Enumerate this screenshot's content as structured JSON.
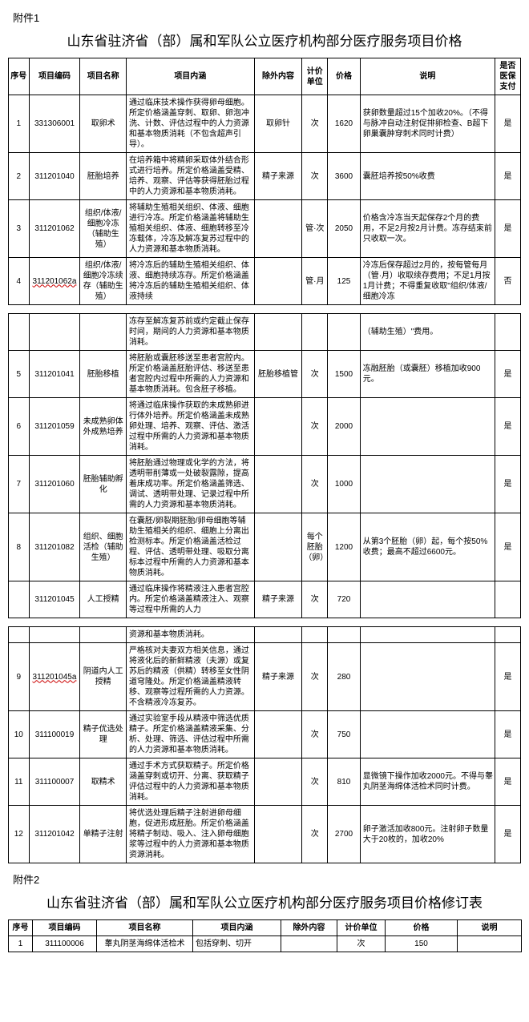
{
  "attach1": {
    "label": "附件1",
    "title": "山东省驻济省（部）属和军队公立医疗机构部分医疗服务项目价格",
    "headers": [
      "序号",
      "项目编码",
      "项目名称",
      "项目内涵",
      "除外内容",
      "计价单位",
      "价格",
      "说明",
      "是否医保支付"
    ],
    "rows": [
      {
        "idx": "1",
        "code": "331306001",
        "name": "取卵术",
        "desc": "通过临床技术操作获得卵母细胞。所定价格涵盖穿刺、取卵、卵泡冲洗、计数、评估过程中的人力资源和基本物质消耗（不包含超声引导）。",
        "excl": "取卵针",
        "unit": "次",
        "price": "1620",
        "note": "获卵数量超过15个加收20%。（不得与脉冲自动注射促排卵检查、B超下卵巢囊肿穿刺术同时计费）",
        "insur": "是"
      },
      {
        "idx": "2",
        "code": "311201040",
        "name": "胚胎培养",
        "desc": "在培养箱中将精卵采取体外结合形式进行培养。所定价格涵盖受精、培养、观察、评估等获得胚胎过程中的人力资源和基本物质消耗。",
        "excl": "精子来源",
        "unit": "次",
        "price": "3600",
        "note": "囊胚培养按50%收费",
        "insur": "是"
      },
      {
        "idx": "3",
        "code": "311201062",
        "name": "组织/体液/细胞冷冻（辅助生殖）",
        "desc": "将辅助生殖相关组织、体液、细胞进行冷冻。所定价格涵盖将辅助生殖相关组织、体液、细胞转移至冷冻载体，冷冻及解冻复苏过程中的人力资源和基本物质消耗。",
        "excl": "",
        "unit": "管·次",
        "price": "2050",
        "note": "价格含冷冻当天起保存2个月的费用，不足2月按2月计费。冻存结束前只收取一次。",
        "insur": "是"
      },
      {
        "idx": "4",
        "code": "311201062a",
        "codeUnderline": true,
        "name": "组织/体液/细胞冷冻续存（辅助生殖）",
        "desc": "将冷冻后的辅助生殖相关组织、体液、细胞持续冻存。所定价格涵盖将冷冻后的辅助生殖相关组织、体液持续",
        "excl": "",
        "unit": "管·月",
        "price": "125",
        "note": "冷冻后保存超过2月的，按每管每月（管·月）收取续存费用；不足1月按1月计费；不得重复收取\"组织/体液/细胞冷冻",
        "insur": "否"
      },
      {
        "idx": "",
        "code": "",
        "name": "",
        "desc": "冻存至解冻复苏前或约定截止保存时间，期间的人力资源和基本物质消耗。",
        "excl": "",
        "unit": "",
        "price": "",
        "note": "（辅助生殖）\"费用。",
        "insur": ""
      },
      {
        "idx": "5",
        "code": "311201041",
        "name": "胚胎移植",
        "desc": "将胚胎或囊胚移送至患者宫腔内。所定价格涵盖胚胎评估、移送至患者宫腔内过程中所需的人力资源和基本物质消耗。包含胚子移植。",
        "excl": "胚胎移植管",
        "unit": "次",
        "price": "1500",
        "note": "冻融胚胎（或囊胚）移植加收900元。",
        "insur": "是"
      },
      {
        "idx": "6",
        "code": "311201059",
        "name": "未成熟卵体外成熟培养",
        "desc": "将通过临床操作获取的未成熟卵进行体外培养。所定价格涵盖未成熟卵处理、培养、观察、评估、激活过程中所需的人力资源和基本物质消耗。",
        "excl": "",
        "unit": "次",
        "price": "2000",
        "note": "",
        "insur": "是"
      },
      {
        "idx": "7",
        "code": "311201060",
        "name": "胚胎辅助孵化",
        "desc": "将胚胎通过物理或化学的方法，将透明带削薄或一处破裂露隙，提高着床成功率。所定价格涵盖筛选、调试、透明带处理、记录过程中所需的人力资源和基本物质消耗。",
        "excl": "",
        "unit": "次",
        "price": "1000",
        "note": "",
        "insur": "是"
      },
      {
        "idx": "8",
        "code": "311201082",
        "name": "组织、细胞活检（辅助生殖）",
        "desc": "在囊胚/卵裂期胚胎/卵母细胞等辅助生殖相关的组织、细胞上分离出检测标本。所定价格涵盖活检过程、评估、透明带处理、吸取分离标本过程中所需的人力资源和基本物质消耗。",
        "excl": "",
        "unit": "每个胚胎（卵）",
        "price": "1200",
        "note": "从第3个胚胎（卵）起，每个按50%收费；最高不超过6600元。",
        "insur": "是"
      },
      {
        "idx": "",
        "code": "311201045",
        "name": "人工授精",
        "desc": "通过临床操作将精液注入患者宫腔内。所定价格涵盖精液注入、观察等过程中所需的人力",
        "excl": "精子来源",
        "unit": "次",
        "price": "720",
        "note": "",
        "insur": ""
      },
      {
        "idx": "",
        "code": "",
        "name": "",
        "desc": "资源和基本物质消耗。",
        "excl": "",
        "unit": "",
        "price": "",
        "note": "",
        "insur": ""
      },
      {
        "idx": "9",
        "code": "311201045a",
        "codeUnderline": true,
        "name": "阴道内人工授精",
        "desc": "严格核对夫妻双方相关信息，通过将液化后的新鲜精液（夫源）或复苏后的精液（供精）转移至女性阴道穹隆处。所定价格涵盖精液转移、观察等过程所需的人力资源。不含精液冷冻复苏。",
        "excl": "精子来源",
        "unit": "次",
        "price": "280",
        "note": "",
        "insur": "是"
      },
      {
        "idx": "10",
        "code": "311100019",
        "name": "精子优选处理",
        "desc": "通过实验室手段从精液中筛选优质精子。所定价格涵盖精液采集、分析、处理、筛选、评估过程中所需的人力资源和基本物质消耗。",
        "excl": "",
        "unit": "次",
        "price": "750",
        "note": "",
        "insur": "是"
      },
      {
        "idx": "11",
        "code": "311100007",
        "name": "取精术",
        "desc": "通过手术方式获取精子。所定价格涵盖穿刺或切开、分离、获取精子评估过程中的人力资源和基本物质消耗。",
        "excl": "",
        "unit": "次",
        "price": "810",
        "note": "显微镜下操作加收2000元。不得与睾丸阴茎海绵体活检术同时计费。",
        "insur": "是"
      },
      {
        "idx": "12",
        "code": "311201042",
        "name": "单精子注射",
        "desc": "将优选处理后精子注射进卵母细胞，促进形成胚胎。所定价格涵盖将精子制动、吸入、注入卵母细胞浆等过程中的人力资源和基本物质资源消耗。",
        "excl": "",
        "unit": "次",
        "price": "2700",
        "note": "卵子激活加收800元。注射卵子数量大于20枚的，加收20%",
        "insur": "是"
      }
    ]
  },
  "attach2": {
    "label": "附件2",
    "title": "山东省驻济省（部）属和军队公立医疗机构部分医疗服务项目价格修订表",
    "headers": [
      "序号",
      "项目编码",
      "项目名称",
      "项目内涵",
      "除外内容",
      "计价单位",
      "价格",
      "说明"
    ],
    "rows": [
      {
        "idx": "1",
        "code": "311100006",
        "name": "睾丸阴茎海绵体活检术",
        "desc": "包括穿刺、切开",
        "excl": "",
        "unit": "次",
        "price": "150",
        "note": ""
      }
    ]
  }
}
